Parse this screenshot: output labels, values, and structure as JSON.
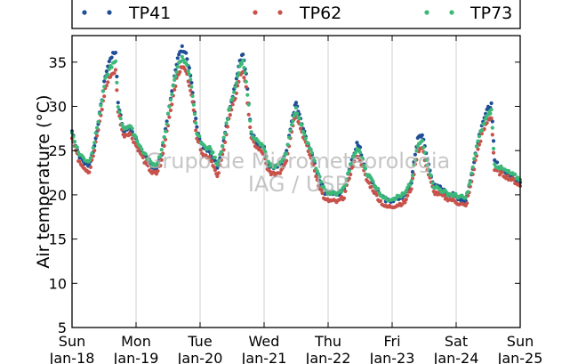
{
  "chart_data": {
    "type": "scatter",
    "ylabel": "Air temperature (°C)",
    "xlabel": "",
    "ylim": [
      5,
      38
    ],
    "xlim": [
      0,
      7
    ],
    "y_ticks": [
      5,
      10,
      15,
      20,
      25,
      30,
      35
    ],
    "x_ticks": [
      {
        "day": "Sun",
        "date": "Jan-18"
      },
      {
        "day": "Mon",
        "date": "Jan-19"
      },
      {
        "day": "Tue",
        "date": "Jan-20"
      },
      {
        "day": "Wed",
        "date": "Jan-21"
      },
      {
        "day": "Thu",
        "date": "Jan-22"
      },
      {
        "day": "Fri",
        "date": "Jan-23"
      },
      {
        "day": "Sat",
        "date": "Jan-24"
      },
      {
        "day": "Sun",
        "date": "Jan-25"
      }
    ],
    "grid": "vertical",
    "legend_position": "top",
    "watermark": [
      "Grupo de Micrometeorologia",
      "IAG / USP"
    ],
    "series": [
      {
        "name": "TP41",
        "color": "#1f4e96",
        "points": [
          [
            0,
            27.2
          ],
          [
            0.1,
            24.6
          ],
          [
            0.2,
            23.6
          ],
          [
            0.27,
            23.4
          ],
          [
            0.35,
            25.5
          ],
          [
            0.45,
            30.0
          ],
          [
            0.52,
            33.5
          ],
          [
            0.6,
            35.5
          ],
          [
            0.68,
            36.2
          ],
          [
            0.72,
            30.5
          ],
          [
            0.8,
            27.3
          ],
          [
            0.9,
            27.6
          ],
          [
            1.0,
            26.3
          ],
          [
            1.05,
            25.5
          ],
          [
            1.15,
            24.3
          ],
          [
            1.25,
            23.1
          ],
          [
            1.32,
            23.0
          ],
          [
            1.4,
            24.6
          ],
          [
            1.5,
            29.0
          ],
          [
            1.6,
            33.5
          ],
          [
            1.65,
            35.5
          ],
          [
            1.72,
            36.6
          ],
          [
            1.78,
            36.0
          ],
          [
            1.85,
            33.5
          ],
          [
            1.9,
            30.5
          ],
          [
            1.95,
            27.5
          ],
          [
            2.05,
            25.2
          ],
          [
            2.15,
            25.0
          ],
          [
            2.2,
            24.2
          ],
          [
            2.27,
            23.2
          ],
          [
            2.35,
            25.5
          ],
          [
            2.45,
            29.5
          ],
          [
            2.55,
            32.5
          ],
          [
            2.62,
            35.2
          ],
          [
            2.67,
            35.9
          ],
          [
            2.72,
            33.5
          ],
          [
            2.8,
            27.0
          ],
          [
            2.9,
            25.8
          ],
          [
            3.0,
            25.5
          ],
          [
            3.05,
            23.5
          ],
          [
            3.15,
            23.0
          ],
          [
            3.25,
            23.3
          ],
          [
            3.35,
            24.8
          ],
          [
            3.45,
            29.0
          ],
          [
            3.5,
            30.4
          ],
          [
            3.55,
            29.0
          ],
          [
            3.65,
            26.5
          ],
          [
            3.75,
            24.5
          ],
          [
            3.85,
            22.0
          ],
          [
            3.95,
            20.3
          ],
          [
            4.05,
            20.2
          ],
          [
            4.15,
            20.0
          ],
          [
            4.25,
            20.7
          ],
          [
            4.35,
            23.5
          ],
          [
            4.45,
            25.8
          ],
          [
            4.5,
            25.2
          ],
          [
            4.6,
            22.5
          ],
          [
            4.7,
            21.4
          ],
          [
            4.8,
            20.2
          ],
          [
            4.9,
            19.3
          ],
          [
            5.0,
            19.4
          ],
          [
            5.1,
            19.6
          ],
          [
            5.2,
            19.9
          ],
          [
            5.3,
            21.5
          ],
          [
            5.4,
            26.5
          ],
          [
            5.47,
            26.8
          ],
          [
            5.55,
            24.0
          ],
          [
            5.65,
            21.0
          ],
          [
            5.75,
            20.8
          ],
          [
            5.85,
            20.2
          ],
          [
            5.95,
            20.0
          ],
          [
            6.05,
            19.6
          ],
          [
            6.15,
            19.3
          ],
          [
            6.22,
            21.5
          ],
          [
            6.32,
            25.5
          ],
          [
            6.4,
            28.0
          ],
          [
            6.5,
            29.8
          ],
          [
            6.55,
            30.2
          ],
          [
            6.6,
            23.8
          ],
          [
            6.7,
            23.0
          ],
          [
            6.8,
            22.4
          ],
          [
            6.9,
            22.0
          ],
          [
            7.0,
            21.4
          ]
        ]
      },
      {
        "name": "TP62",
        "color": "#c8524a",
        "points": [
          [
            0,
            26.5
          ],
          [
            0.1,
            24.0
          ],
          [
            0.2,
            23.0
          ],
          [
            0.27,
            22.6
          ],
          [
            0.35,
            25.0
          ],
          [
            0.45,
            29.0
          ],
          [
            0.52,
            32.0
          ],
          [
            0.6,
            33.5
          ],
          [
            0.68,
            34.0
          ],
          [
            0.72,
            29.5
          ],
          [
            0.8,
            26.7
          ],
          [
            0.9,
            27.0
          ],
          [
            1.0,
            25.6
          ],
          [
            1.05,
            25.0
          ],
          [
            1.15,
            23.5
          ],
          [
            1.25,
            22.5
          ],
          [
            1.32,
            22.4
          ],
          [
            1.4,
            23.8
          ],
          [
            1.5,
            28.0
          ],
          [
            1.6,
            32.0
          ],
          [
            1.65,
            33.5
          ],
          [
            1.72,
            34.5
          ],
          [
            1.78,
            34.0
          ],
          [
            1.85,
            32.0
          ],
          [
            1.9,
            29.5
          ],
          [
            1.95,
            26.5
          ],
          [
            2.05,
            24.5
          ],
          [
            2.15,
            24.3
          ],
          [
            2.2,
            23.5
          ],
          [
            2.27,
            21.9
          ],
          [
            2.35,
            24.5
          ],
          [
            2.45,
            28.5
          ],
          [
            2.55,
            31.0
          ],
          [
            2.62,
            33.5
          ],
          [
            2.67,
            34.0
          ],
          [
            2.72,
            32.0
          ],
          [
            2.8,
            26.3
          ],
          [
            2.9,
            25.2
          ],
          [
            3.0,
            24.6
          ],
          [
            3.05,
            22.8
          ],
          [
            3.15,
            22.3
          ],
          [
            3.25,
            22.6
          ],
          [
            3.35,
            24.0
          ],
          [
            3.45,
            28.0
          ],
          [
            3.5,
            29.3
          ],
          [
            3.55,
            28.0
          ],
          [
            3.65,
            25.8
          ],
          [
            3.75,
            23.7
          ],
          [
            3.85,
            21.2
          ],
          [
            3.95,
            19.4
          ],
          [
            4.05,
            19.3
          ],
          [
            4.15,
            19.2
          ],
          [
            4.25,
            19.8
          ],
          [
            4.35,
            22.5
          ],
          [
            4.45,
            24.5
          ],
          [
            4.5,
            24.0
          ],
          [
            4.6,
            21.7
          ],
          [
            4.7,
            20.6
          ],
          [
            4.8,
            19.4
          ],
          [
            4.9,
            18.6
          ],
          [
            5.0,
            18.7
          ],
          [
            5.1,
            18.9
          ],
          [
            5.2,
            19.2
          ],
          [
            5.3,
            20.8
          ],
          [
            5.4,
            25.0
          ],
          [
            5.47,
            25.3
          ],
          [
            5.55,
            22.8
          ],
          [
            5.65,
            20.3
          ],
          [
            5.75,
            20.0
          ],
          [
            5.85,
            19.6
          ],
          [
            5.95,
            19.4
          ],
          [
            6.05,
            19.0
          ],
          [
            6.15,
            18.7
          ],
          [
            6.22,
            20.8
          ],
          [
            6.32,
            24.5
          ],
          [
            6.4,
            26.8
          ],
          [
            6.5,
            28.5
          ],
          [
            6.55,
            28.8
          ],
          [
            6.6,
            22.8
          ],
          [
            6.7,
            22.4
          ],
          [
            6.8,
            22.0
          ],
          [
            6.9,
            21.6
          ],
          [
            7.0,
            21.0
          ]
        ]
      },
      {
        "name": "TP73",
        "color": "#3cb878",
        "points": [
          [
            0,
            27.0
          ],
          [
            0.1,
            24.8
          ],
          [
            0.2,
            24.0
          ],
          [
            0.27,
            23.8
          ],
          [
            0.35,
            26.0
          ],
          [
            0.45,
            30.0
          ],
          [
            0.52,
            33.0
          ],
          [
            0.6,
            34.5
          ],
          [
            0.68,
            35.0
          ],
          [
            0.72,
            30.0
          ],
          [
            0.8,
            27.5
          ],
          [
            0.9,
            27.8
          ],
          [
            1.0,
            26.5
          ],
          [
            1.05,
            25.6
          ],
          [
            1.15,
            24.4
          ],
          [
            1.25,
            23.5
          ],
          [
            1.32,
            23.4
          ],
          [
            1.4,
            24.9
          ],
          [
            1.5,
            29.0
          ],
          [
            1.6,
            33.0
          ],
          [
            1.65,
            34.5
          ],
          [
            1.72,
            35.5
          ],
          [
            1.78,
            35.0
          ],
          [
            1.85,
            33.0
          ],
          [
            1.9,
            30.0
          ],
          [
            1.95,
            27.0
          ],
          [
            2.05,
            25.5
          ],
          [
            2.15,
            25.3
          ],
          [
            2.2,
            24.6
          ],
          [
            2.27,
            23.5
          ],
          [
            2.35,
            25.6
          ],
          [
            2.45,
            29.5
          ],
          [
            2.55,
            32.0
          ],
          [
            2.62,
            34.5
          ],
          [
            2.67,
            35.0
          ],
          [
            2.72,
            33.0
          ],
          [
            2.8,
            27.0
          ],
          [
            2.9,
            26.0
          ],
          [
            3.0,
            25.3
          ],
          [
            3.05,
            23.6
          ],
          [
            3.15,
            23.2
          ],
          [
            3.25,
            23.5
          ],
          [
            3.35,
            24.9
          ],
          [
            3.45,
            28.5
          ],
          [
            3.5,
            29.8
          ],
          [
            3.55,
            28.5
          ],
          [
            3.65,
            26.5
          ],
          [
            3.75,
            24.6
          ],
          [
            3.85,
            22.2
          ],
          [
            3.95,
            20.4
          ],
          [
            4.05,
            20.2
          ],
          [
            4.15,
            20.1
          ],
          [
            4.25,
            20.8
          ],
          [
            4.35,
            23.3
          ],
          [
            4.45,
            25.2
          ],
          [
            4.5,
            24.8
          ],
          [
            4.6,
            22.5
          ],
          [
            4.7,
            21.5
          ],
          [
            4.8,
            20.3
          ],
          [
            4.9,
            19.5
          ],
          [
            5.0,
            19.6
          ],
          [
            5.1,
            19.8
          ],
          [
            5.2,
            20.1
          ],
          [
            5.3,
            21.5
          ],
          [
            5.4,
            25.6
          ],
          [
            5.47,
            26.0
          ],
          [
            5.55,
            23.5
          ],
          [
            5.65,
            21.0
          ],
          [
            5.75,
            20.6
          ],
          [
            5.85,
            20.2
          ],
          [
            5.95,
            20.0
          ],
          [
            6.05,
            19.8
          ],
          [
            6.15,
            19.6
          ],
          [
            6.22,
            21.5
          ],
          [
            6.32,
            25.5
          ],
          [
            6.4,
            27.5
          ],
          [
            6.5,
            29.2
          ],
          [
            6.55,
            29.5
          ],
          [
            6.6,
            23.4
          ],
          [
            6.7,
            23.0
          ],
          [
            6.8,
            22.6
          ],
          [
            6.9,
            22.2
          ],
          [
            7.0,
            21.7
          ]
        ]
      }
    ]
  }
}
